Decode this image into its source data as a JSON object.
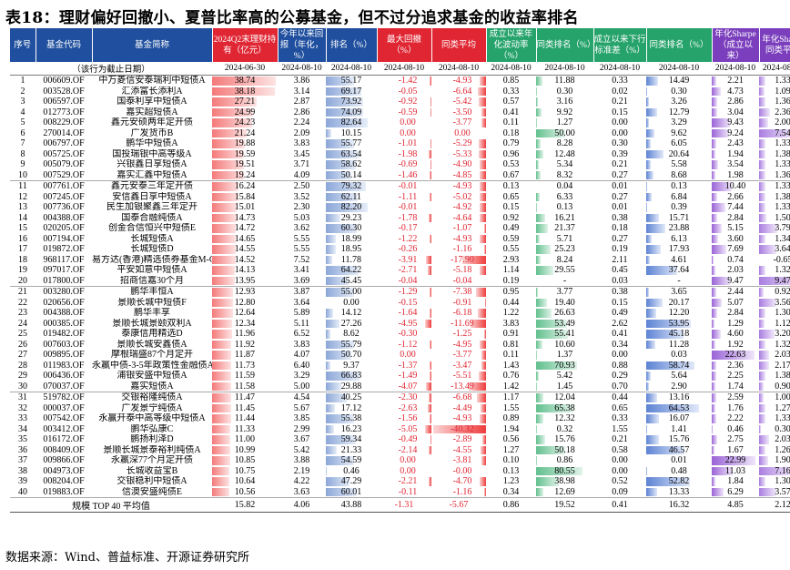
{
  "title": "表18：理财偏好回撤小、夏普比率高的公募基金，但不过分追求基金的收益率排名",
  "source": "数据来源：Wind、普益标准、开源证券研究所",
  "headers": [
    "序号",
    "基金代码",
    "基金简称",
    "2024Q2末理财持有（亿元）",
    "今年以来回报（年化，%）",
    "排名（%）",
    "最大回撤（%）",
    "同类平均",
    "成立以来年化波动率（%）",
    "同类排名（%）",
    "成立以来下行标准差（%）",
    "同类排名（%）",
    "年化Sharpe（成立以来）",
    "年化Sharpe同类平均"
  ],
  "subheader_note": "（该行为截止日期）",
  "dates": [
    "2024-06-30",
    "2024-08-10",
    "2024-08-10",
    "2024-08-10",
    "2024-08-10",
    "2024-08-10",
    "2024-08-10",
    "2024-08-10",
    "2024-08-10",
    "2024-08-10",
    "2024-08-10"
  ],
  "rows": [
    [
      "1",
      "006609.OF",
      "中万菱信安泰瑞利中短债A",
      "38.74",
      "3.86",
      "55.17",
      "-1.42",
      "-4.93",
      "0.85",
      "11.88",
      "0.33",
      "14.49",
      "2.21",
      "1.33"
    ],
    [
      "2",
      "003528.OF",
      "汇添富长添利A",
      "38.18",
      "3.14",
      "69.17",
      "-0.05",
      "-6.64",
      "0.33",
      "0.30",
      "0.02",
      "0.30",
      "4.73",
      "1.09"
    ],
    [
      "3",
      "006597.OF",
      "国泰利享中短债A",
      "27.21",
      "2.87",
      "73.92",
      "-0.92",
      "-5.42",
      "0.57",
      "3.16",
      "0.21",
      "3.26",
      "2.86",
      "1.36"
    ],
    [
      "4",
      "012773.OF",
      "嘉实超短债A",
      "24.99",
      "2.86",
      "74.09",
      "-0.59",
      "-3.50",
      "0.41",
      "9.92",
      "0.15",
      "12.79",
      "3.04",
      "2.36"
    ],
    [
      "5",
      "008229.OF",
      "鑫元安硕两年定开债",
      "24.23",
      "2.24",
      "82.64",
      "0.00",
      "-3.77",
      "0.11",
      "1.27",
      "0.00",
      "3.29",
      "9.43",
      "2.00"
    ],
    [
      "6",
      "270014.OF",
      "广发货币B",
      "21.24",
      "2.09",
      "10.15",
      "0.00",
      "0.00",
      "0.18",
      "50.00",
      "0.00",
      "9.62",
      "9.24",
      "7.54"
    ],
    [
      "7",
      "006797.OF",
      "鹏华中短债A",
      "19.88",
      "3.83",
      "55.77",
      "-1.01",
      "-5.29",
      "0.79",
      "8.28",
      "0.30",
      "6.05",
      "2.43",
      "1.33"
    ],
    [
      "8",
      "005725.OF",
      "国投瑞银中高等级A",
      "19.59",
      "3.45",
      "63.54",
      "-1.98",
      "-5.33",
      "0.96",
      "12.48",
      "0.39",
      "20.64",
      "1.94",
      "1.38"
    ],
    [
      "9",
      "005079.OF",
      "兴银鑫日享短债A",
      "19.51",
      "3.71",
      "58.62",
      "-0.69",
      "-4.90",
      "0.53",
      "5.34",
      "0.21",
      "5.58",
      "3.54",
      "1.33"
    ],
    [
      "10",
      "007529.OF",
      "嘉实汇鑫中短债A",
      "19.24",
      "4.09",
      "50.14",
      "-1.46",
      "-4.85",
      "0.67",
      "8.32",
      "0.27",
      "8.68",
      "1.98",
      "1.36"
    ],
    [
      "11",
      "007761.OF",
      "鑫元安泰三年定开债",
      "16.24",
      "2.50",
      "79.32",
      "-0.01",
      "-4.93",
      "0.13",
      "0.04",
      "0.01",
      "0.13",
      "10.40",
      "1.33"
    ],
    [
      "12",
      "007245.OF",
      "安信鑫日享中短债A",
      "15.84",
      "3.52",
      "62.11",
      "-1.11",
      "-5.02",
      "0.65",
      "6.33",
      "0.27",
      "6.84",
      "2.66",
      "1.38"
    ],
    [
      "13",
      "007736.OF",
      "民生加银聚鑫三年定开",
      "15.01",
      "2.30",
      "82.20",
      "-0.01",
      "-4.92",
      "0.15",
      "0.13",
      "0.01",
      "0.39",
      "7.44",
      "1.33"
    ],
    [
      "14",
      "004388.OF",
      "国泰合融纯债A",
      "14.73",
      "5.03",
      "29.23",
      "-1.78",
      "-4.64",
      "0.92",
      "16.21",
      "0.38",
      "15.71",
      "2.84",
      "1.50"
    ],
    [
      "15",
      "020205.OF",
      "创金合信恒兴中短债E",
      "14.72",
      "3.62",
      "60.30",
      "-0.17",
      "-1.07",
      "0.49",
      "21.37",
      "0.18",
      "23.88",
      "5.15",
      "3.79"
    ],
    [
      "16",
      "007194.OF",
      "长城短债A",
      "14.65",
      "5.55",
      "18.99",
      "-1.22",
      "-4.93",
      "0.59",
      "5.71",
      "0.27",
      "6.13",
      "3.60",
      "1.34"
    ],
    [
      "17",
      "019872.OF",
      "长城短债D",
      "14.55",
      "5.55",
      "18.95",
      "-0.26",
      "-1.16",
      "0.55",
      "25.23",
      "0.19",
      "17.93",
      "7.69",
      "3.64"
    ],
    [
      "18",
      "968117.OF",
      "易方达(香港)精选债券基金M-CNY",
      "14.52",
      "7.52",
      "11.78",
      "-3.91",
      "-17.90",
      "2.93",
      "8.24",
      "2.11",
      "4.61",
      "0.74",
      "-0.65"
    ],
    [
      "19",
      "097017.OF",
      "平安如意中短债A",
      "14.13",
      "3.41",
      "64.22",
      "-2.71",
      "-5.18",
      "1.14",
      "29.55",
      "0.45",
      "37.64",
      "2.03",
      "1.32"
    ],
    [
      "20",
      "017800.OF",
      "招商信嘉30个月",
      "13.95",
      "3.69",
      "45.45",
      "-0.04",
      "-0.04",
      "0.19",
      "-",
      "0.03",
      "-",
      "9.47",
      "9.47"
    ],
    [
      "21",
      "003280.OF",
      "鹏华丰恒A",
      "12.93",
      "3.87",
      "55.00",
      "-1.29",
      "-7.38",
      "0.95",
      "3.77",
      "0.38",
      "3.65",
      "2.44",
      "0.92"
    ],
    [
      "22",
      "020656.OF",
      "景顺长城中短债F",
      "12.80",
      "3.64",
      "0.00",
      "-0.15",
      "-0.91",
      "0.44",
      "19.40",
      "0.15",
      "20.17",
      "5.07",
      "3.56"
    ],
    [
      "23",
      "004388.OF",
      "鹏华丰享",
      "12.64",
      "5.89",
      "14.12",
      "-1.64",
      "-6.18",
      "1.22",
      "26.63",
      "0.49",
      "12.20",
      "2.84",
      "1.30"
    ],
    [
      "24",
      "000385.OF",
      "景顺长城景颐双利A",
      "12.34",
      "5.11",
      "27.26",
      "-4.95",
      "-11.69",
      "3.83",
      "53.49",
      "2.62",
      "53.95",
      "1.29",
      "1.12"
    ],
    [
      "25",
      "019482.OF",
      "泰康信用精选D",
      "11.96",
      "6.52",
      "8.62",
      "-0.30",
      "-1.25",
      "0.91",
      "55.41",
      "0.41",
      "45.18",
      "4.60",
      "3.20"
    ],
    [
      "26",
      "007603.OF",
      "景顺长城安鑫债A",
      "11.92",
      "3.83",
      "55.79",
      "-1.12",
      "-4.95",
      "0.81",
      "10.60",
      "0.34",
      "11.28",
      "1.92",
      "1.32"
    ],
    [
      "27",
      "009895.OF",
      "摩根瑞盛87个月定开",
      "11.87",
      "4.07",
      "50.70",
      "0.00",
      "-3.77",
      "0.11",
      "1.37",
      "0.00",
      "0.03",
      "22.63",
      "2.03"
    ],
    [
      "28",
      "011983.OF",
      "永嬴中债-3-5年政策性金融债A",
      "11.73",
      "6.40",
      "9.37",
      "-1.37",
      "-3.47",
      "1.43",
      "70.93",
      "0.88",
      "58.74",
      "2.36",
      "2.17"
    ],
    [
      "29",
      "006436.OF",
      "浦银安盛中短债A",
      "11.59",
      "3.29",
      "66.83",
      "-1.49",
      "-5.51",
      "0.76",
      "5.42",
      "0.29",
      "5.64",
      "2.25",
      "1.38"
    ],
    [
      "30",
      "070037.OF",
      "嘉实短债A",
      "11.58",
      "5.00",
      "29.88",
      "-4.07",
      "-13.49",
      "1.42",
      "1.45",
      "0.70",
      "2.90",
      "1.74",
      "0.90"
    ],
    [
      "31",
      "519782.OF",
      "交银裕隆纯债A",
      "11.47",
      "4.54",
      "40.25",
      "-2.30",
      "-6.68",
      "1.17",
      "12.04",
      "0.44",
      "13.16",
      "2.59",
      "1.00"
    ],
    [
      "32",
      "000037.OF",
      "广发景宁纯债A",
      "11.45",
      "5.67",
      "17.12",
      "-2.63",
      "-4.49",
      "1.55",
      "65.38",
      "0.65",
      "64.53",
      "1.76",
      "1.27"
    ],
    [
      "33",
      "007542.OF",
      "永赢开泰中高等级中短债A",
      "11.44",
      "3.85",
      "55.38",
      "-1.56",
      "-4.93",
      "0.89",
      "12.32",
      "0.33",
      "16.07",
      "2.22",
      "1.33"
    ],
    [
      "34",
      "003412.OF",
      "鹏华弘康C",
      "11.33",
      "2.99",
      "16.23",
      "-5.05",
      "-40.32",
      "1.94",
      "0.32",
      "1.55",
      "1.41",
      "0.46",
      "0.30"
    ],
    [
      "35",
      "016172.OF",
      "鹏扬利泽D",
      "11.00",
      "3.67",
      "59.34",
      "-0.49",
      "-2.89",
      "0.56",
      "15.76",
      "0.21",
      "15.76",
      "2.75",
      "2.03"
    ],
    [
      "36",
      "008409.OF",
      "景顺长城景泰裕利纯债A",
      "10.99",
      "5.42",
      "21.33",
      "-2.14",
      "-4.55",
      "1.27",
      "50.18",
      "0.58",
      "46.57",
      "1.67",
      "1.26"
    ],
    [
      "37",
      "009866.OF",
      "永嬴深77个月定开债",
      "10.85",
      "3.88",
      "54.59",
      "0.00",
      "-3.81",
      "0.10",
      "0.86",
      "0.00",
      "0.01",
      "22.99",
      "1.90"
    ],
    [
      "38",
      "004973.OF",
      "长城收益宝B",
      "10.75",
      "2.19",
      "0.46",
      "0.00",
      "-0.00",
      "0.13",
      "80.55",
      "0.00",
      "0.48",
      "11.03",
      "7.16"
    ],
    [
      "39",
      "008204.OF",
      "交银稳利中短债A",
      "10.64",
      "4.22",
      "47.29",
      "-2.21",
      "-4.70",
      "1.23",
      "38.98",
      "0.52",
      "52.82",
      "1.84",
      "1.30"
    ],
    [
      "40",
      "019883.OF",
      "信澳安盛纯债E",
      "10.56",
      "3.63",
      "60.01",
      "-0.11",
      "-1.16",
      "0.34",
      "12.69",
      "0.09",
      "13.33",
      "6.29",
      "3.57"
    ]
  ],
  "footer": [
    "规模 TOP 40 平均值",
    "15.82",
    "4.06",
    "43.88",
    "-1.31",
    "-5.67",
    "0.86",
    "19.52",
    "0.41",
    "16.32",
    "4.85",
    "2.12"
  ]
}
